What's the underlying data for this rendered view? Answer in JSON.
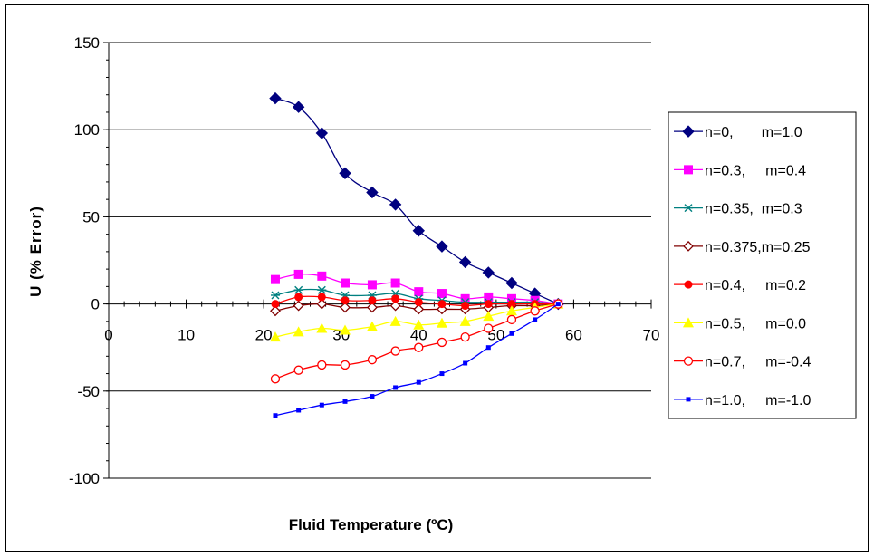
{
  "chart_data": {
    "type": "line",
    "title": "",
    "xlabel": "Fluid Temperature (ºC)",
    "ylabel": "U (% Error)",
    "xlim": [
      0,
      70
    ],
    "ylim": [
      -100,
      150
    ],
    "xticks": [
      0,
      10,
      20,
      30,
      40,
      50,
      60,
      70
    ],
    "yticks": [
      -100,
      -50,
      0,
      50,
      100,
      150
    ],
    "grid": "horizontal major",
    "legend_position": "right",
    "x": [
      21.5,
      24.5,
      27.5,
      30.5,
      34,
      37,
      40,
      43,
      46,
      49,
      52,
      55,
      58
    ],
    "series": [
      {
        "name": "n=0,       m=1.0",
        "color": "#000080",
        "marker": "diamond",
        "values": [
          118,
          113,
          98,
          75,
          64,
          57,
          42,
          33,
          24,
          18,
          12,
          6,
          0
        ]
      },
      {
        "name": "n=0.3,     m=0.4",
        "color": "#ff00ff",
        "marker": "square",
        "values": [
          14,
          17,
          16,
          12,
          11,
          12,
          7,
          6,
          3,
          4,
          3,
          2,
          0
        ]
      },
      {
        "name": "n=0.35,  m=0.3",
        "color": "#008080",
        "marker": "asterisk",
        "values": [
          5,
          8,
          8,
          5,
          5,
          6,
          3,
          2,
          1,
          1,
          1,
          1,
          0
        ]
      },
      {
        "name": "n=0.375,m=0.25",
        "color": "#800000",
        "marker": "diamond-open",
        "values": [
          -4,
          -1,
          0,
          -2,
          -2,
          -1,
          -3,
          -3,
          -3,
          -2,
          -1,
          -1,
          0
        ]
      },
      {
        "name": "n=0.4,     m=0.2",
        "color": "#ff0000",
        "marker": "circle",
        "values": [
          0,
          4,
          4,
          2,
          2,
          3,
          1,
          0,
          -1,
          0,
          0,
          0,
          0
        ]
      },
      {
        "name": "n=0.5,     m=0.0",
        "color": "#ffff00",
        "marker": "triangle",
        "values": [
          -19,
          -16,
          -14,
          -15,
          -13,
          -10,
          -12,
          -11,
          -10,
          -7,
          -4,
          -2,
          0
        ]
      },
      {
        "name": "n=0.7,     m=-0.4",
        "color": "#ff0000",
        "marker": "circle-open",
        "values": [
          -43,
          -38,
          -35,
          -35,
          -32,
          -27,
          -25,
          -22,
          -19,
          -14,
          -9,
          -4,
          0
        ]
      },
      {
        "name": "n=1.0,     m=-1.0",
        "color": "#0000ff",
        "marker": "small-square",
        "values": [
          -64,
          -61,
          -58,
          -56,
          -53,
          -48,
          -45,
          -40,
          -34,
          -25,
          -17,
          -9,
          0
        ]
      }
    ]
  }
}
